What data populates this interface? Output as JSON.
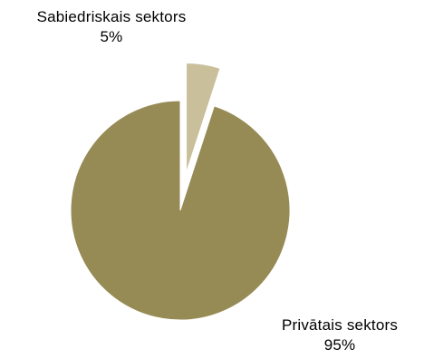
{
  "chart_data": {
    "type": "pie",
    "title": "",
    "slices": [
      {
        "label": "Sabiedriskais sektors",
        "value": 5,
        "value_label": "5%",
        "color": "#c9bf9b",
        "exploded": true
      },
      {
        "label": "Privātais sektors",
        "value": 95,
        "value_label": "95%",
        "color": "#968b55",
        "exploded": false
      }
    ],
    "start_angle": "12 o'clock",
    "direction": "clockwise",
    "legend": "none",
    "data_labels": "outside"
  }
}
